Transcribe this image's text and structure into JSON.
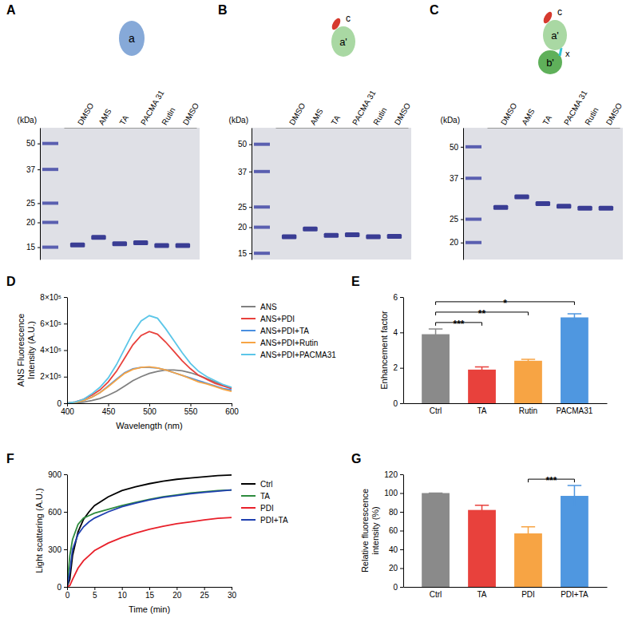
{
  "chart_data": [
    {
      "type": "gel",
      "title": "A",
      "annotations": [
        "a"
      ],
      "y_label": "(kDa)",
      "log": "y",
      "categories": [
        "DMSO",
        "AMS",
        "TA",
        "PACMA 31",
        "Rutin",
        "DMSO"
      ],
      "values": [
        15.4,
        16.8,
        15.6,
        15.8,
        15.3,
        15.3
      ],
      "ylim": [
        13,
        60
      ],
      "yticks": [
        15,
        20,
        25,
        37,
        50
      ],
      "color": "#3a3d94"
    },
    {
      "type": "gel",
      "title": "B",
      "annotations": [
        "c",
        "a'"
      ],
      "y_label": "(kDa)",
      "log": "y",
      "categories": [
        "DMSO",
        "AMS",
        "TA",
        "PACMA 31",
        "Rutin",
        "DMSO"
      ],
      "values": [
        18.0,
        19.6,
        18.3,
        18.4,
        18.0,
        18.1
      ],
      "ylim": [
        14,
        60
      ],
      "yticks": [
        15,
        20,
        25,
        37,
        50
      ],
      "color": "#3a3d94"
    },
    {
      "type": "gel",
      "title": "C",
      "annotations": [
        "c",
        "a'",
        "b'",
        "x"
      ],
      "y_label": "(kDa)",
      "log": "y",
      "categories": [
        "DMSO",
        "AMS",
        "TA",
        "PACMA 31",
        "Rutin",
        "DMSO"
      ],
      "values": [
        28.0,
        31.0,
        29.0,
        28.3,
        27.8,
        27.8
      ],
      "ylim": [
        17,
        60
      ],
      "yticks": [
        20,
        25,
        37,
        50
      ],
      "color": "#3a3d94"
    },
    {
      "type": "line",
      "title": "D",
      "x_label": "Wavelength (nm)",
      "y_label": "ANS Fluorescence Intensity (A.U.)",
      "x": [
        400,
        410,
        420,
        430,
        440,
        450,
        460,
        470,
        480,
        490,
        500,
        510,
        520,
        530,
        540,
        550,
        560,
        570,
        580,
        590,
        600
      ],
      "xlim": [
        400,
        600
      ],
      "xticks": [
        400,
        450,
        500,
        550,
        600
      ],
      "ylim": [
        0,
        800000
      ],
      "yticks": [
        0,
        {
          "value": 200000,
          "label": "2×10⁵"
        },
        {
          "value": 400000,
          "label": "4×10⁵"
        },
        {
          "value": 600000,
          "label": "6×10⁵"
        },
        {
          "value": 800000,
          "label": "8×10⁵"
        }
      ],
      "legend": "right",
      "series": [
        {
          "name": "ANS",
          "color": "#808080",
          "values": [
            0,
            2000,
            8000,
            20000,
            35000,
            60000,
            90000,
            130000,
            170000,
            200000,
            225000,
            240000,
            250000,
            250000,
            245000,
            230000,
            210000,
            185000,
            160000,
            135000,
            115000
          ]
        },
        {
          "name": "ANS+PDI",
          "color": "#e8413c",
          "values": [
            0,
            10000,
            30000,
            60000,
            100000,
            160000,
            240000,
            340000,
            440000,
            510000,
            540000,
            520000,
            460000,
            390000,
            320000,
            260000,
            210000,
            180000,
            150000,
            130000,
            110000
          ]
        },
        {
          "name": "ANS+PDI+TA",
          "color": "#4a8fe0",
          "values": [
            0,
            5000,
            20000,
            45000,
            80000,
            130000,
            180000,
            230000,
            260000,
            270000,
            270000,
            265000,
            250000,
            230000,
            210000,
            190000,
            170000,
            150000,
            130000,
            110000,
            100000
          ]
        },
        {
          "name": "ANS+PDI+Rutin",
          "color": "#f7a444",
          "values": [
            0,
            5000,
            20000,
            45000,
            80000,
            125000,
            175000,
            225000,
            255000,
            270000,
            275000,
            265000,
            250000,
            230000,
            210000,
            185000,
            160000,
            145000,
            125000,
            105000,
            90000
          ]
        },
        {
          "name": "ANS+PDI+PACMA31",
          "color": "#5bc6e8",
          "values": [
            0,
            10000,
            30000,
            70000,
            120000,
            190000,
            290000,
            410000,
            530000,
            620000,
            660000,
            640000,
            560000,
            470000,
            380000,
            300000,
            240000,
            200000,
            170000,
            140000,
            120000
          ]
        }
      ]
    },
    {
      "type": "bar",
      "title": "E",
      "y_label": "Enhancement factor",
      "categories": [
        "Ctrl",
        "TA",
        "Rutin",
        "PACMA31"
      ],
      "values": [
        3.9,
        1.9,
        2.4,
        4.85
      ],
      "errors": [
        0.3,
        0.15,
        0.08,
        0.2
      ],
      "colors": [
        "#8a8a8a",
        "#e8413c",
        "#f7a444",
        "#4f97e0"
      ],
      "ylim": [
        0,
        6
      ],
      "yticks": [
        0,
        2,
        4,
        6
      ],
      "significance": [
        {
          "groups": [
            "Ctrl",
            "TA"
          ],
          "label": "***"
        },
        {
          "groups": [
            "Ctrl",
            "Rutin"
          ],
          "label": "**"
        },
        {
          "groups": [
            "Ctrl",
            "PACMA31"
          ],
          "label": "*"
        }
      ]
    },
    {
      "type": "line",
      "title": "F",
      "x_label": "Time (min)",
      "y_label": "Light scattering (A.U.)",
      "x": [
        0,
        0.5,
        1,
        2,
        3,
        4,
        5,
        7.5,
        10,
        12.5,
        15,
        17.5,
        20,
        22.5,
        25,
        27.5,
        30
      ],
      "xlim": [
        0,
        30
      ],
      "xticks": [
        0,
        5,
        10,
        15,
        20,
        25,
        30
      ],
      "ylim": [
        0,
        900
      ],
      "yticks": [
        0,
        300,
        600,
        900
      ],
      "legend": "right",
      "series": [
        {
          "name": "Ctrl",
          "color": "#000000",
          "values": [
            0,
            60,
            250,
            440,
            540,
            600,
            650,
            720,
            770,
            800,
            825,
            845,
            860,
            870,
            880,
            890,
            895
          ]
        },
        {
          "name": "TA",
          "color": "#2e8b3e",
          "values": [
            0,
            250,
            380,
            500,
            550,
            570,
            590,
            620,
            650,
            675,
            700,
            720,
            735,
            750,
            760,
            770,
            775
          ]
        },
        {
          "name": "PDI",
          "color": "#e8202a",
          "values": [
            0,
            10,
            60,
            150,
            210,
            250,
            290,
            350,
            395,
            430,
            460,
            485,
            505,
            520,
            535,
            548,
            555
          ]
        },
        {
          "name": "PDI+TA",
          "color": "#1f3fb0",
          "values": [
            0,
            120,
            300,
            420,
            480,
            520,
            550,
            600,
            640,
            670,
            695,
            715,
            730,
            745,
            755,
            765,
            775
          ]
        }
      ]
    },
    {
      "type": "bar",
      "title": "G",
      "y_label": "Relative fluorescence intensity (%)",
      "categories": [
        "Ctrl",
        "TA",
        "PDI",
        "PDI+TA"
      ],
      "values": [
        100,
        82,
        57,
        97
      ],
      "errors": [
        0,
        5,
        7,
        11
      ],
      "colors": [
        "#8a8a8a",
        "#e8413c",
        "#f7a444",
        "#4f97e0"
      ],
      "ylim": [
        0,
        120
      ],
      "yticks": [
        0,
        20,
        40,
        60,
        80,
        100,
        120
      ],
      "significance": [
        {
          "groups": [
            "PDI",
            "PDI+TA"
          ],
          "label": "***"
        }
      ]
    }
  ]
}
